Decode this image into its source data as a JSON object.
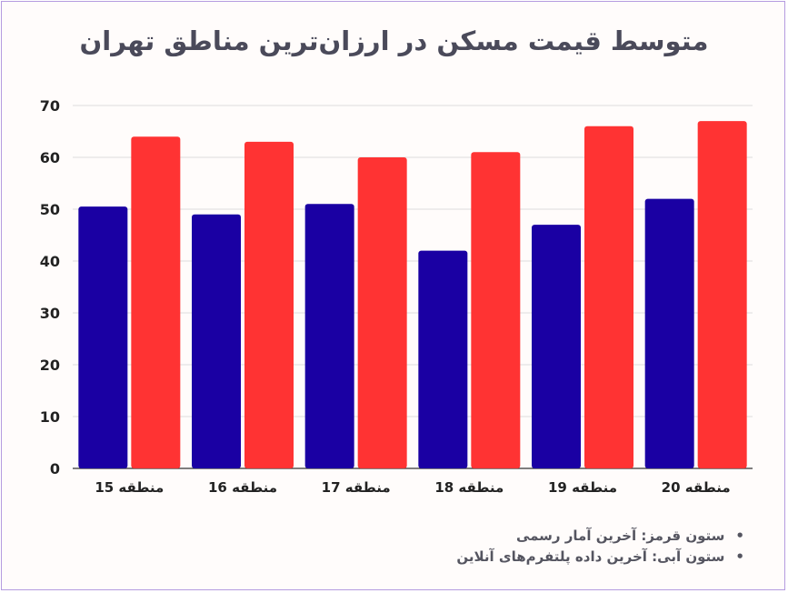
{
  "chart_data": {
    "type": "bar",
    "title": "متوسط قیمت مسکن در ارزان‌ترین مناطق تهران",
    "categories": [
      "منطقه 15",
      "منطقه 16",
      "منطقه 17",
      "منطقه 18",
      "منطقه 19",
      "منطقه 20"
    ],
    "series": [
      {
        "color": "#1a00a3",
        "values": [
          50.5,
          49,
          51,
          42,
          47,
          52
        ]
      },
      {
        "color": "#ff3333",
        "values": [
          64,
          63,
          60,
          61,
          66,
          67
        ]
      }
    ],
    "xlabel": "",
    "ylabel": "",
    "ylim": [
      0,
      70
    ],
    "yticks": [
      0,
      10,
      20,
      30,
      40,
      50,
      60,
      70
    ],
    "grid": true
  },
  "notes": [
    "ستون قرمز: آخرین آمار رسمی",
    "ستون آبی: آخرین داده پلتفرم‌های آنلاین"
  ]
}
